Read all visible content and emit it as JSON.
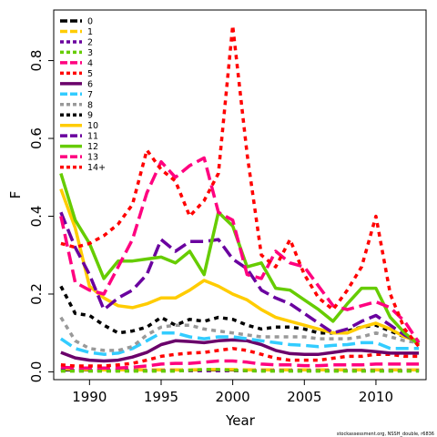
{
  "chart_data": {
    "type": "line",
    "title": "",
    "xlabel": "Year",
    "ylabel": "F",
    "xlim": [
      1987.5,
      2013.5
    ],
    "ylim": [
      -0.02,
      0.93
    ],
    "x_ticks": [
      1990,
      1995,
      2000,
      2005,
      2010
    ],
    "y_ticks": [
      0.0,
      0.2,
      0.4,
      0.6,
      0.8
    ],
    "x_tick_labels": [
      "1990",
      "1995",
      "2000",
      "2005",
      "2010"
    ],
    "y_tick_labels": [
      "0.0",
      "0.2",
      "0.4",
      "0.6",
      "0.8"
    ],
    "legend_position": "top-left",
    "grid": false,
    "source_note": "stockassessment.org, NSSH_double, r6836",
    "x": [
      1988,
      1989,
      1990,
      1991,
      1992,
      1993,
      1994,
      1995,
      1996,
      1997,
      1998,
      1999,
      2000,
      2001,
      2002,
      2003,
      2004,
      2005,
      2006,
      2007,
      2008,
      2009,
      2010,
      2011,
      2012,
      2013
    ],
    "series": [
      {
        "name": "0",
        "color": "#000000",
        "dash": "long",
        "values": [
          0.005,
          0.005,
          0.005,
          0.005,
          0.005,
          0.005,
          0.005,
          0.005,
          0.005,
          0.005,
          0.005,
          0.005,
          0.005,
          0.005,
          0.005,
          0.005,
          0.005,
          0.005,
          0.005,
          0.005,
          0.005,
          0.005,
          0.005,
          0.005,
          0.005,
          0.005
        ]
      },
      {
        "name": "1",
        "color": "#ffcc00",
        "dash": "long",
        "values": [
          0.008,
          0.006,
          0.006,
          0.005,
          0.005,
          0.005,
          0.005,
          0.005,
          0.005,
          0.005,
          0.006,
          0.006,
          0.006,
          0.005,
          0.005,
          0.005,
          0.005,
          0.005,
          0.005,
          0.005,
          0.005,
          0.005,
          0.005,
          0.005,
          0.005,
          0.005
        ]
      },
      {
        "name": "2",
        "color": "#6a009f",
        "dash": "short",
        "values": [
          0.005,
          0.003,
          0.003,
          0.003,
          0.003,
          0.003,
          0.003,
          0.003,
          0.003,
          0.003,
          0.003,
          0.003,
          0.003,
          0.003,
          0.003,
          0.003,
          0.003,
          0.003,
          0.003,
          0.003,
          0.003,
          0.003,
          0.003,
          0.003,
          0.003,
          0.003
        ]
      },
      {
        "name": "3",
        "color": "#66cc00",
        "dash": "short",
        "values": [
          0.002,
          0.002,
          0.002,
          0.002,
          0.002,
          0.002,
          0.002,
          0.002,
          0.002,
          0.004,
          0.006,
          0.006,
          0.004,
          0.003,
          0.002,
          0.002,
          0.002,
          0.002,
          0.002,
          0.002,
          0.002,
          0.002,
          0.002,
          0.002,
          0.002,
          0.002
        ]
      },
      {
        "name": "4",
        "color": "#ff007f",
        "dash": "long",
        "values": [
          0.012,
          0.01,
          0.01,
          0.01,
          0.01,
          0.012,
          0.015,
          0.02,
          0.022,
          0.022,
          0.025,
          0.028,
          0.028,
          0.025,
          0.02,
          0.018,
          0.018,
          0.016,
          0.016,
          0.018,
          0.018,
          0.018,
          0.02,
          0.02,
          0.02,
          0.02
        ]
      },
      {
        "name": "5",
        "color": "#ff0000",
        "dash": "short",
        "values": [
          0.018,
          0.015,
          0.015,
          0.015,
          0.018,
          0.022,
          0.03,
          0.04,
          0.045,
          0.048,
          0.05,
          0.055,
          0.06,
          0.055,
          0.045,
          0.035,
          0.03,
          0.03,
          0.03,
          0.035,
          0.04,
          0.04,
          0.045,
          0.045,
          0.04,
          0.04
        ]
      },
      {
        "name": "6",
        "color": "#6a006a",
        "dash": "solid",
        "values": [
          0.05,
          0.036,
          0.03,
          0.028,
          0.03,
          0.038,
          0.05,
          0.07,
          0.08,
          0.078,
          0.075,
          0.08,
          0.082,
          0.08,
          0.07,
          0.055,
          0.047,
          0.045,
          0.045,
          0.05,
          0.055,
          0.055,
          0.052,
          0.048,
          0.048,
          0.048
        ]
      },
      {
        "name": "7",
        "color": "#33ccff",
        "dash": "long",
        "values": [
          0.085,
          0.06,
          0.05,
          0.045,
          0.048,
          0.06,
          0.08,
          0.1,
          0.1,
          0.09,
          0.085,
          0.09,
          0.09,
          0.085,
          0.08,
          0.075,
          0.07,
          0.068,
          0.065,
          0.068,
          0.07,
          0.075,
          0.075,
          0.06,
          0.06,
          0.06
        ]
      },
      {
        "name": "8",
        "color": "#999999",
        "dash": "short",
        "values": [
          0.14,
          0.08,
          0.06,
          0.055,
          0.055,
          0.065,
          0.095,
          0.115,
          0.12,
          0.12,
          0.11,
          0.105,
          0.1,
          0.095,
          0.09,
          0.09,
          0.09,
          0.09,
          0.085,
          0.085,
          0.085,
          0.09,
          0.1,
          0.09,
          0.08,
          0.075
        ]
      },
      {
        "name": "9",
        "color": "#000000",
        "dash": "short",
        "values": [
          0.22,
          0.15,
          0.145,
          0.12,
          0.1,
          0.105,
          0.115,
          0.14,
          0.12,
          0.135,
          0.13,
          0.14,
          0.135,
          0.12,
          0.11,
          0.115,
          0.115,
          0.11,
          0.1,
          0.1,
          0.105,
          0.115,
          0.12,
          0.105,
          0.09,
          0.08
        ]
      },
      {
        "name": "10",
        "color": "#ffcc00",
        "dash": "solid",
        "values": [
          0.47,
          0.37,
          0.22,
          0.19,
          0.17,
          0.165,
          0.175,
          0.19,
          0.19,
          0.21,
          0.235,
          0.22,
          0.2,
          0.185,
          0.16,
          0.14,
          0.13,
          0.12,
          0.11,
          0.1,
          0.1,
          0.115,
          0.125,
          0.11,
          0.09,
          0.08
        ]
      },
      {
        "name": "11",
        "color": "#6a009f",
        "dash": "long",
        "values": [
          0.41,
          0.32,
          0.25,
          0.16,
          0.19,
          0.21,
          0.25,
          0.34,
          0.31,
          0.335,
          0.335,
          0.34,
          0.29,
          0.265,
          0.21,
          0.19,
          0.175,
          0.15,
          0.125,
          0.1,
          0.11,
          0.13,
          0.145,
          0.12,
          0.095,
          0.075
        ]
      },
      {
        "name": "12",
        "color": "#66cc00",
        "dash": "solid",
        "values": [
          0.51,
          0.39,
          0.33,
          0.24,
          0.285,
          0.285,
          0.29,
          0.295,
          0.28,
          0.31,
          0.25,
          0.41,
          0.375,
          0.27,
          0.28,
          0.215,
          0.21,
          0.185,
          0.16,
          0.13,
          0.175,
          0.215,
          0.215,
          0.14,
          0.1,
          0.07
        ]
      },
      {
        "name": "13",
        "color": "#ff007f",
        "dash": "long",
        "values": [
          0.4,
          0.23,
          0.21,
          0.2,
          0.27,
          0.34,
          0.46,
          0.54,
          0.5,
          0.53,
          0.55,
          0.41,
          0.39,
          0.25,
          0.24,
          0.31,
          0.28,
          0.27,
          0.22,
          0.17,
          0.16,
          0.17,
          0.18,
          0.165,
          0.13,
          0.075
        ]
      },
      {
        "name": "14+",
        "color": "#ff0000",
        "dash": "short",
        "values": [
          0.33,
          0.32,
          0.33,
          0.35,
          0.38,
          0.43,
          0.57,
          0.52,
          0.49,
          0.4,
          0.44,
          0.51,
          0.89,
          0.56,
          0.3,
          0.27,
          0.34,
          0.25,
          0.19,
          0.16,
          0.21,
          0.27,
          0.4,
          0.2,
          0.11,
          0.065
        ]
      }
    ]
  }
}
